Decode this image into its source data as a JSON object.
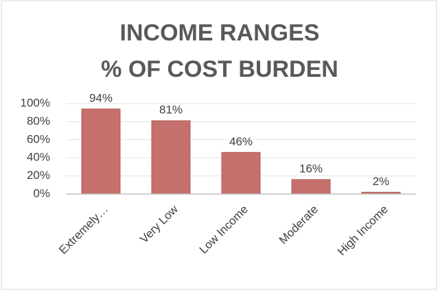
{
  "chart_data": {
    "type": "bar",
    "title": [
      "INCOME RANGES",
      "% OF COST BURDEN"
    ],
    "categories": [
      "Extremely…",
      "Very Low",
      "Low Income",
      "Moderate",
      "High Income"
    ],
    "values": [
      94,
      81,
      46,
      16,
      2
    ],
    "value_labels": [
      "94%",
      "81%",
      "46%",
      "16%",
      "2%"
    ],
    "color": "#c6706d",
    "ylim": [
      0,
      100
    ],
    "yticks": [
      {
        "value": 0,
        "label": "0%"
      },
      {
        "value": 20,
        "label": "20%"
      },
      {
        "value": 40,
        "label": "40%"
      },
      {
        "value": 60,
        "label": "60%"
      },
      {
        "value": 80,
        "label": "80%"
      },
      {
        "value": 100,
        "label": "100%"
      }
    ],
    "grid": true
  }
}
